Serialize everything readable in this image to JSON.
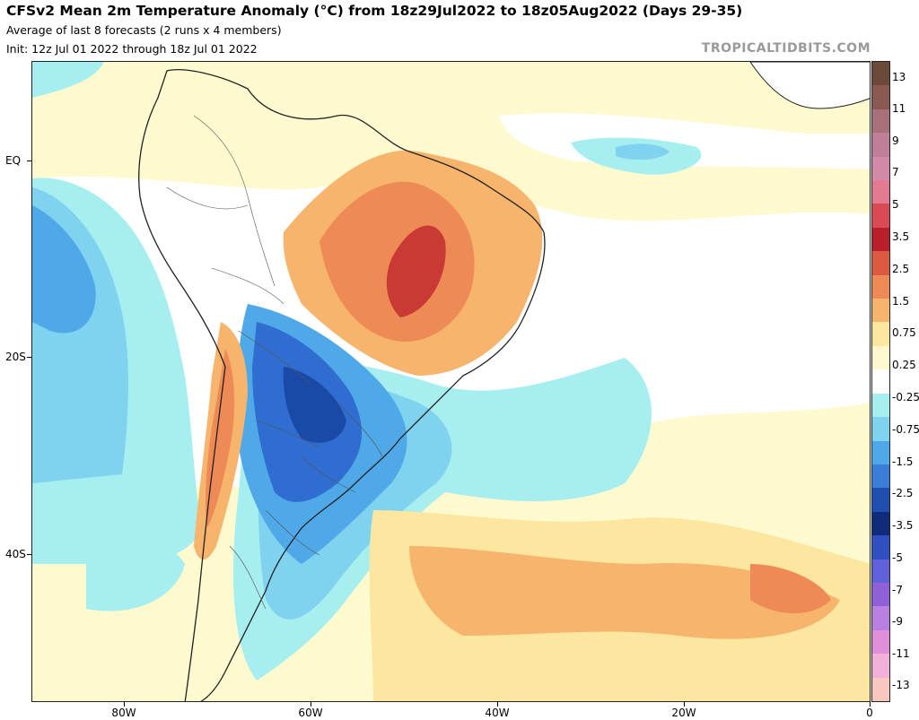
{
  "header": {
    "title": "CFSv2 Mean 2m Temperature Anomaly (°C) from 18z29Jul2022 to 18z05Aug2022 (Days 29-35)",
    "subtitle": "Average of last 8 forecasts (2 runs x 4 members)",
    "init": "Init: 12z Jul 01 2022 through 18z Jul 01 2022"
  },
  "brand": "TROPICALTIDBITS.COM",
  "axes": {
    "lat_labels": [
      "EQ",
      "20S",
      "40S"
    ],
    "lon_labels": [
      "80W",
      "60W",
      "40W",
      "20W",
      "0"
    ]
  },
  "colorbar": {
    "labels": [
      "13",
      "11",
      "9",
      "7",
      "5",
      "3.5",
      "2.5",
      "1.5",
      "0.75",
      "0.25",
      "-0.25",
      "-0.75",
      "-1.5",
      "-2.5",
      "-3.5",
      "-5",
      "-7",
      "-9",
      "-11",
      "-13"
    ],
    "colors": [
      "#6b4a3a",
      "#8a5a52",
      "#a87078",
      "#c07f98",
      "#d28aa8",
      "#e27a90",
      "#d94a55",
      "#b71f2a",
      "#dc5a40",
      "#ee8a55",
      "#f7b46c",
      "#fde7a0",
      "#fff8cf",
      "#ffffff",
      "#a6eef0",
      "#7fd3ef",
      "#4fa8e8",
      "#3a7ed8",
      "#1f4fb0",
      "#0f2c7a",
      "#3050c0",
      "#6060d8",
      "#9060d8",
      "#b880e0",
      "#e090d8",
      "#f0b0d8",
      "#f8c8c0"
    ]
  },
  "map": {
    "background_color": "#fdfacf",
    "anomaly_colors": {
      "strong_warm": "#c93a35",
      "warm": "#ee8a55",
      "mild_warm": "#f7b46c",
      "slight_warm": "#fde7a0",
      "neutral": "#ffffff",
      "slight_cool": "#a6eef0",
      "cool": "#7fd3ef",
      "cold": "#4fa8e8",
      "very_cold": "#2f6dd0",
      "extreme_cold": "#1a4aa8"
    }
  }
}
